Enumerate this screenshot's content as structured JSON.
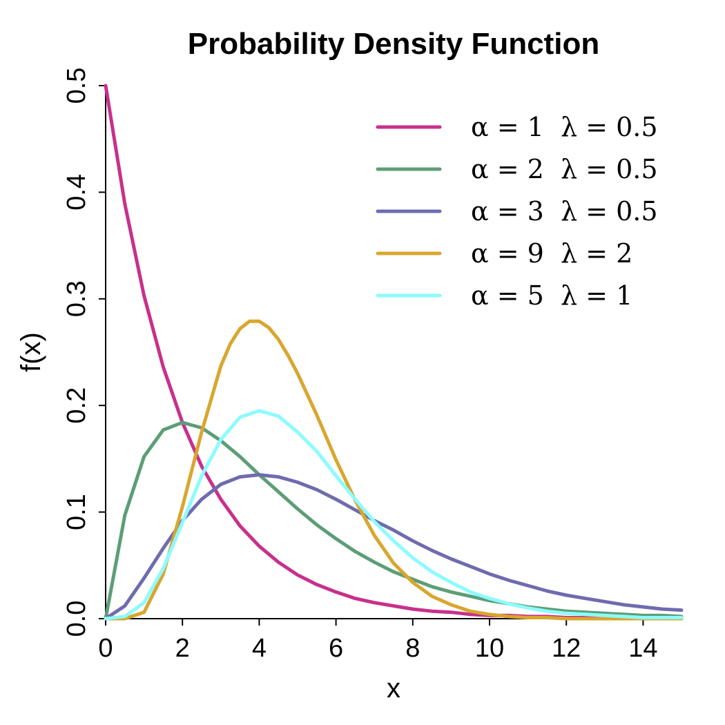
{
  "chart_data": {
    "type": "line",
    "title": "Probability Density Function",
    "xlabel": "x",
    "ylabel": "f(x)",
    "xlim": [
      0,
      15
    ],
    "ylim": [
      0,
      0.5
    ],
    "x_ticks": [
      "0",
      "2",
      "4",
      "6",
      "8",
      "10",
      "12",
      "14"
    ],
    "y_ticks": [
      "0.0",
      "0.1",
      "0.2",
      "0.3",
      "0.4",
      "0.5"
    ],
    "legend_position": "top-right",
    "grid": false,
    "series": [
      {
        "name": "α = 1  λ = 0.5",
        "color": "#C8308B",
        "x": [
          0,
          0.5,
          1,
          1.5,
          2,
          2.5,
          3,
          3.5,
          4,
          4.5,
          5,
          5.5,
          6,
          6.5,
          7,
          7.5,
          8,
          8.5,
          9,
          9.5,
          10,
          10.5,
          11,
          11.5,
          12,
          12.5,
          13,
          13.5,
          14,
          14.5,
          15
        ],
        "y": [
          0.5,
          0.389,
          0.303,
          0.236,
          0.184,
          0.143,
          0.112,
          0.087,
          0.068,
          0.053,
          0.041,
          0.032,
          0.025,
          0.019,
          0.015,
          0.012,
          0.009,
          0.007,
          0.006,
          0.004,
          0.003,
          0.003,
          0.002,
          0.002,
          0.001,
          0.001,
          0.001,
          0.001,
          0.0,
          0.0,
          0.0
        ]
      },
      {
        "name": "α = 2  λ = 0.5",
        "color": "#5C9E76",
        "x": [
          0,
          0.5,
          1,
          1.5,
          2,
          2.5,
          3,
          3.5,
          4,
          4.5,
          5,
          5.5,
          6,
          6.5,
          7,
          7.5,
          8,
          8.5,
          9,
          9.5,
          10,
          10.5,
          11,
          11.5,
          12,
          12.5,
          13,
          13.5,
          14,
          14.5,
          15
        ],
        "y": [
          0.0,
          0.097,
          0.152,
          0.177,
          0.184,
          0.179,
          0.167,
          0.152,
          0.135,
          0.119,
          0.103,
          0.088,
          0.075,
          0.063,
          0.053,
          0.044,
          0.037,
          0.03,
          0.025,
          0.021,
          0.017,
          0.014,
          0.011,
          0.009,
          0.007,
          0.006,
          0.005,
          0.004,
          0.003,
          0.003,
          0.002
        ]
      },
      {
        "name": "α = 3  λ = 0.5",
        "color": "#6F6BAE",
        "x": [
          0,
          0.5,
          1,
          1.5,
          2,
          2.5,
          3,
          3.5,
          4,
          4.5,
          5,
          5.5,
          6,
          6.5,
          7,
          7.5,
          8,
          8.5,
          9,
          9.5,
          10,
          10.5,
          11,
          11.5,
          12,
          12.5,
          13,
          13.5,
          14,
          14.5,
          15
        ],
        "y": [
          0.0,
          0.012,
          0.038,
          0.066,
          0.092,
          0.112,
          0.126,
          0.133,
          0.135,
          0.133,
          0.128,
          0.121,
          0.112,
          0.102,
          0.092,
          0.083,
          0.073,
          0.064,
          0.056,
          0.049,
          0.042,
          0.036,
          0.031,
          0.026,
          0.022,
          0.019,
          0.016,
          0.013,
          0.011,
          0.009,
          0.008
        ]
      },
      {
        "name": "α = 9  λ = 2",
        "color": "#D9A62E",
        "x": [
          0,
          0.5,
          1,
          1.5,
          2,
          2.5,
          3,
          3.25,
          3.5,
          3.75,
          4,
          4.25,
          4.5,
          4.75,
          5,
          5.5,
          6,
          6.5,
          7,
          7.5,
          8,
          8.5,
          9,
          9.5,
          10,
          10.5,
          11,
          11.5,
          12,
          12.5,
          13,
          13.5,
          14,
          14.5,
          15
        ],
        "y": [
          0.0,
          0.0,
          0.006,
          0.042,
          0.105,
          0.175,
          0.237,
          0.258,
          0.272,
          0.279,
          0.279,
          0.273,
          0.262,
          0.247,
          0.23,
          0.191,
          0.149,
          0.111,
          0.078,
          0.052,
          0.034,
          0.021,
          0.013,
          0.007,
          0.004,
          0.002,
          0.001,
          0.001,
          0.0,
          0.0,
          0.0,
          0.0,
          0.0,
          0.0,
          0.0
        ]
      },
      {
        "name": "α = 5  λ = 1",
        "color": "#8CFBFF",
        "x": [
          0,
          0.5,
          1,
          1.5,
          2,
          2.5,
          3,
          3.5,
          4,
          4.5,
          5,
          5.5,
          6,
          6.5,
          7,
          7.5,
          8,
          8.5,
          9,
          9.5,
          10,
          10.5,
          11,
          11.5,
          12,
          12.5,
          13,
          13.5,
          14,
          14.5,
          15
        ],
        "y": [
          0.0,
          0.002,
          0.015,
          0.047,
          0.09,
          0.134,
          0.168,
          0.189,
          0.195,
          0.19,
          0.175,
          0.157,
          0.134,
          0.112,
          0.091,
          0.073,
          0.057,
          0.044,
          0.034,
          0.025,
          0.019,
          0.014,
          0.01,
          0.007,
          0.005,
          0.004,
          0.003,
          0.002,
          0.001,
          0.001,
          0.001
        ]
      }
    ]
  }
}
